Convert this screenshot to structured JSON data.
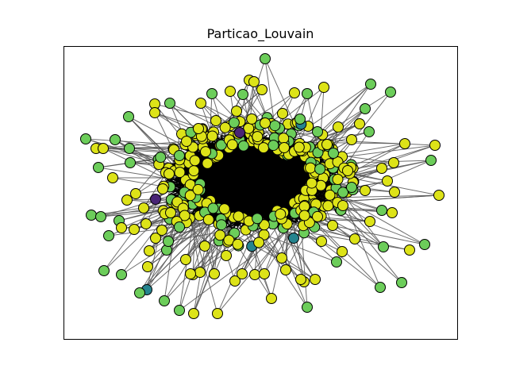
{
  "chart_data": {
    "type": "network",
    "title": "Particao_Louvain",
    "node_colors": {
      "yellow": "#dde318",
      "green": "#6ccd5a",
      "teal": "#25848e",
      "purple": "#482475"
    },
    "edge_color": "#555555",
    "node_edge_color": "#000000",
    "grid": false,
    "axes_ticks": false
  }
}
